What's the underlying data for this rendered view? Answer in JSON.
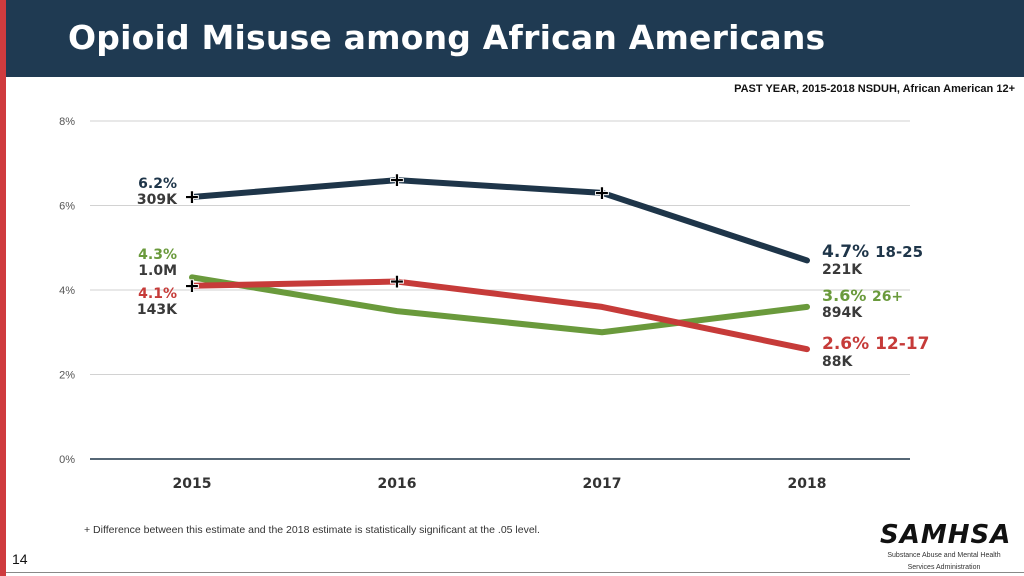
{
  "page": {
    "title": "Opioid Misuse among African Americans",
    "subtitle": "PAST YEAR, 2015-2018 NSDUH, African American 12+",
    "footnote": "+ Difference between this estimate and the 2018 estimate is statistically significant at the .05 level.",
    "page_number": "14",
    "logo": {
      "name": "SAMHSA",
      "tagline_line1": "Substance Abuse and Mental Health",
      "tagline_line2": "Services Administration"
    }
  },
  "colors": {
    "series_18_25": "#1e3549",
    "series_26plus": "#6a9a3c",
    "series_12_17": "#c63b39",
    "title_bar": "#1f3a52",
    "accent_bar": "#cf3b3e"
  },
  "chart_data": {
    "type": "line",
    "title": "",
    "xlabel": "",
    "ylabel": "",
    "x": [
      "2015",
      "2016",
      "2017",
      "2018"
    ],
    "ylim": [
      0,
      8
    ],
    "yticks": [
      0,
      2,
      4,
      6,
      8
    ],
    "ytick_labels": [
      "0%",
      "2%",
      "4%",
      "6%",
      "8%"
    ],
    "grid": true,
    "significance_marker": "+",
    "series": [
      {
        "name": "18-25",
        "values": [
          6.2,
          6.6,
          6.3,
          4.7
        ],
        "significant": [
          true,
          true,
          true,
          false
        ],
        "start_label": {
          "pct": "6.2%",
          "count": "309K"
        },
        "end_label": {
          "pct": "4.7%",
          "group": "18-25",
          "count": "221K"
        }
      },
      {
        "name": "26+",
        "values": [
          4.3,
          3.5,
          3.0,
          3.6
        ],
        "significant": [
          false,
          false,
          false,
          false
        ],
        "start_label": {
          "pct": "4.3%",
          "count": "1.0M"
        },
        "end_label": {
          "pct": "3.6%",
          "group": "26+",
          "count": "894K"
        }
      },
      {
        "name": "12-17",
        "values": [
          4.1,
          4.2,
          3.6,
          2.6
        ],
        "significant": [
          true,
          true,
          false,
          false
        ],
        "start_label": {
          "pct": "4.1%",
          "count": "143K"
        },
        "end_label": {
          "pct": "2.6%",
          "group": "12-17",
          "count": "88K"
        }
      }
    ]
  }
}
